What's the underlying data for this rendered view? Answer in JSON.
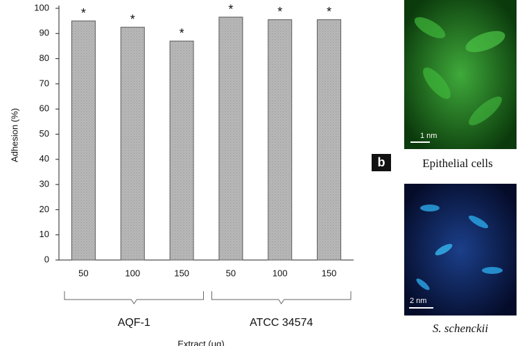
{
  "chart_data": {
    "type": "bar",
    "ylabel": "Adhesion (%)",
    "xlabel": "Extract (μg)",
    "categories": [
      "50",
      "100",
      "150",
      "50",
      "100",
      "150"
    ],
    "values": [
      95,
      92.5,
      87,
      96.5,
      95.5,
      95.5
    ],
    "annotations": [
      "*",
      "*",
      "*",
      "*",
      "*",
      "*"
    ],
    "groups": [
      "AQF-1",
      "ATCC 34574"
    ],
    "color": "#b9b9b9",
    "ylim": [
      0,
      100
    ],
    "yticks": [
      0,
      10,
      20,
      30,
      40,
      50,
      60,
      70,
      80,
      90,
      100
    ]
  },
  "panels": {
    "label": "b",
    "images": [
      {
        "scale_bar": "1 nm",
        "caption": "Epithelial cells"
      },
      {
        "scale_bar": "2 nm",
        "caption": "S. schenckii"
      }
    ]
  }
}
